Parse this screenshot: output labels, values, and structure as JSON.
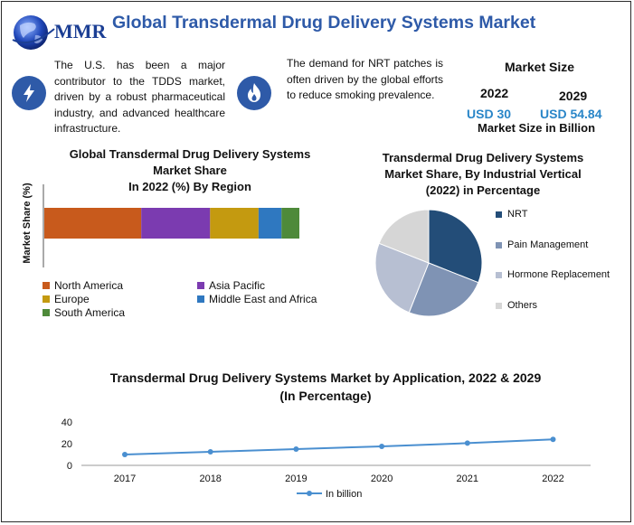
{
  "header": {
    "logo_text": "MMR",
    "title": "Global Transdermal Drug Delivery Systems Market"
  },
  "blurbs": [
    {
      "icon": "lightning-bolt-icon",
      "text": "The U.S. has been a major contributor to the TDDS market, driven by a robust pharmaceutical industry, and advanced healthcare infrastructure."
    },
    {
      "icon": "flame-icon",
      "text": "The demand for NRT patches is often driven by the global efforts to reduce smoking prevalence."
    }
  ],
  "market_size": {
    "title": "Market Size",
    "year_a": "2022",
    "value_a": "USD 30",
    "year_b": "2029",
    "value_b": "USD 54.84",
    "subtitle": "Market Size in Billion"
  },
  "colors": {
    "title_blue": "#2e5aa8",
    "usd_blue": "#2a86c8",
    "border": "#2b2b2b"
  },
  "chart_data": [
    {
      "type": "bar",
      "stacked": true,
      "orientation": "horizontal",
      "title_lines": [
        "Global Transdermal Drug Delivery Systems",
        "Market Share",
        "In 2022 (%) By Region"
      ],
      "ylabel": "Market Share (%)",
      "series": [
        {
          "name": "North America",
          "value": 38,
          "color": "#c85a1c"
        },
        {
          "name": "Asia Pacific",
          "value": 27,
          "color": "#7b3bb0"
        },
        {
          "name": "Europe",
          "value": 19,
          "color": "#c49a10"
        },
        {
          "name": "Middle East and Africa",
          "value": 9,
          "color": "#2f78c0"
        },
        {
          "name": "South America",
          "value": 7,
          "color": "#4e8a3a"
        }
      ],
      "legend_placement": "bottom"
    },
    {
      "type": "pie",
      "title_lines": [
        "Transdermal Drug Delivery Systems",
        "Market Share, By Industrial Vertical",
        "(2022) in Percentage"
      ],
      "slices": [
        {
          "name": "NRT",
          "value": 31,
          "color": "#234d78"
        },
        {
          "name": "Pain Management",
          "value": 25,
          "color": "#7f93b4"
        },
        {
          "name": "Hormone Replacement",
          "value": 25,
          "color": "#b7bfd2"
        },
        {
          "name": "Others",
          "value": 19,
          "color": "#d6d6d6"
        }
      ],
      "legend_placement": "right"
    },
    {
      "type": "line",
      "title_lines": [
        "Transdermal Drug Delivery Systems Market by Application, 2022 & 2029",
        "(In Percentage)"
      ],
      "categories": [
        "2017",
        "2018",
        "2019",
        "2020",
        "2021",
        "2022"
      ],
      "series": [
        {
          "name": "In billion",
          "values": [
            10,
            12.5,
            15,
            17.5,
            20.5,
            24
          ],
          "color": "#4a8fd0"
        }
      ],
      "ylim": [
        0,
        40
      ],
      "yticks": [
        "0",
        "20",
        "40"
      ],
      "grid": false,
      "legend_placement": "bottom"
    }
  ]
}
